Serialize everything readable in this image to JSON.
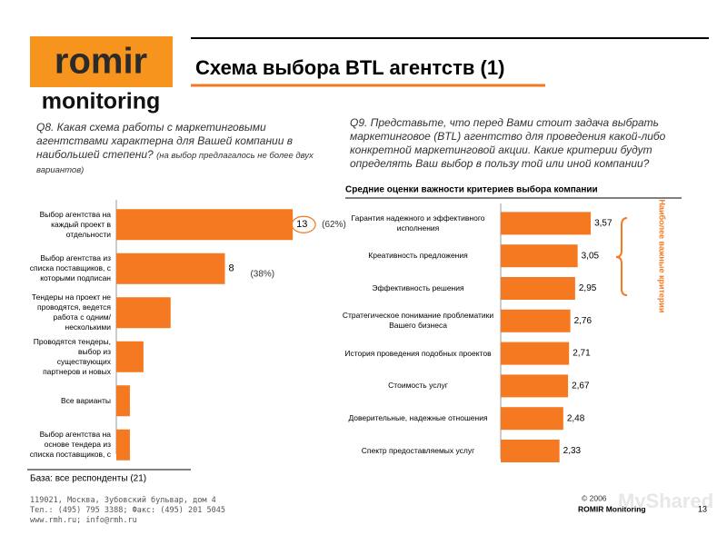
{
  "header": {
    "logo_top": "romir",
    "logo_bottom": "monitoring",
    "title": "Схема выбора BTL агентств (1)"
  },
  "q8": {
    "question": "Q8. Какая схема работы с маркетинговыми агентствами характерна для Вашей компании в наибольшей степени?",
    "note": "(на выбор предлагалось не более двух вариантов)"
  },
  "q9": "Q9. Представьте, что перед Вами стоит задача выбрать маркетинговое (BTL) агентство для проведения какой-либо конкретной маркетинговой акции. Какие критерии будут определять Ваш выбор в пользу той или иной компании?",
  "chart_data": [
    {
      "type": "bar",
      "orientation": "horizontal",
      "color": "#f47920",
      "categories": [
        "Выбор агентства на каждый проект в отдельности",
        "Выбор агентства из списка поставщиков, с которыми подписан",
        "Тендеры на проект не проводятся, ведется работа с одним/несколькими",
        "Проводятся тендеры, выбор из существующих партнеров и новых",
        "Все варианты",
        "Выбор агентства на основе тендера из списка поставщиков, с"
      ],
      "values": [
        13,
        8,
        4,
        2,
        1,
        1
      ],
      "value_labels": [
        "13",
        "8",
        null,
        null,
        null,
        null
      ],
      "percent_labels": [
        "(62%)",
        "(38%)",
        null,
        null,
        null,
        null
      ],
      "xlim": [
        0,
        15
      ],
      "base_note": "База: все респонденты (21)"
    },
    {
      "type": "bar",
      "orientation": "horizontal",
      "color": "#f47920",
      "title": "Средние оценки важности критериев выбора компании",
      "categories": [
        "Гарантия надежного и эффективного исполнения",
        "Креативность предложения",
        "Эффективность решения",
        "Стратегическое понимание проблематики Вашего бизнеса",
        "История проведения подобных проектов",
        "Стоимость услуг",
        "Доверительные, надежные отношения",
        "Спектр предоставляемых услуг"
      ],
      "values": [
        3.57,
        3.05,
        2.95,
        2.76,
        2.71,
        2.67,
        2.48,
        2.33
      ],
      "value_labels": [
        "3,57",
        "3,05",
        "2,95",
        "2,76",
        "2,71",
        "2,67",
        "2,48",
        "2,33"
      ],
      "xlim": [
        0,
        4
      ],
      "annotation": "Наиболее важные критерии"
    }
  ],
  "footer": {
    "address": [
      "119021, Москва, Зубовский бульвар, дом 4",
      "Тел.: (495) 795 3388; Факс: (495) 201 5045",
      "www.rmh.ru; info@rmh.ru"
    ],
    "copyright": "© 2006",
    "company": "ROMIR Monitoring",
    "page": "13",
    "watermark": "MyShared"
  }
}
